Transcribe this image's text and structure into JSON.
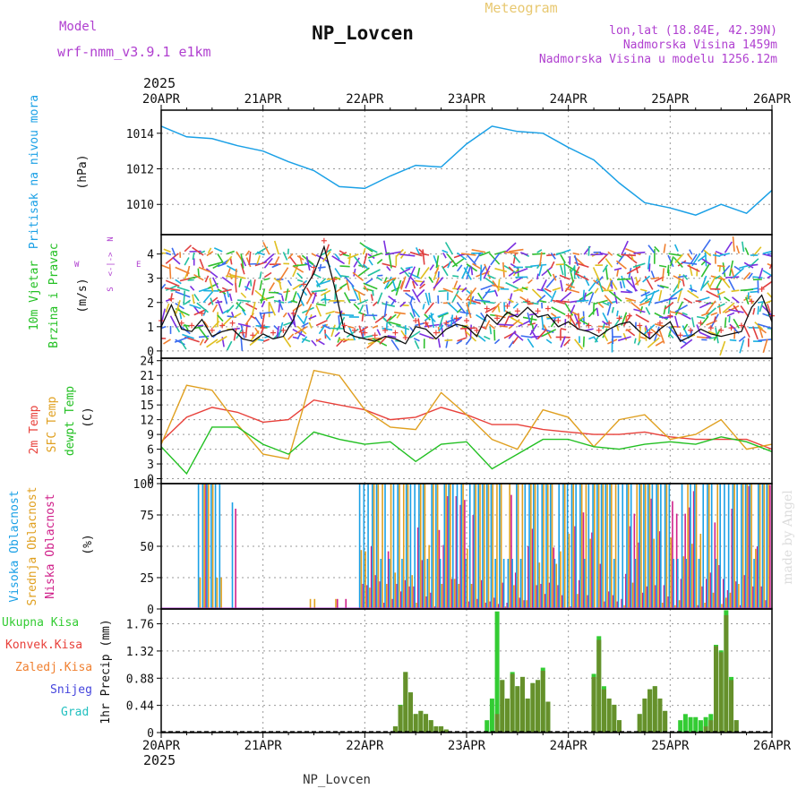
{
  "header": {
    "model_label": "Model",
    "model_name": "wrf-nmm_v3.9.1 e1km",
    "station": "NP_Lovcen",
    "chart_kind": "Meteogram",
    "coords": "lon,lat (18.84E, 42.39N)",
    "elevation": "Nadmorska Visina 1459m",
    "model_elevation": "Nadmorska Visina u modelu 1256.12m",
    "credit": "made by Angel",
    "footer_station": "NP_Lovcen"
  },
  "colors": {
    "pressure": "#1aa0e6",
    "temp2m": "#e8403a",
    "sfc": "#e0a020",
    "dewpt": "#22c022",
    "high_cloud": "#1aa0e6",
    "mid_cloud": "#e0a020",
    "low_cloud": "#d0208a",
    "total_precip": "#33cc33",
    "conv_precip": "#e8403a",
    "frz_precip": "#f08030",
    "snow": "#4444dd",
    "grad": "#22c0c0",
    "wind_axis_label": "#b040d0"
  },
  "time_axis": {
    "year": "2025",
    "labels": [
      "20APR",
      "21APR",
      "22APR",
      "23APR",
      "24APR",
      "25APR",
      "26APR"
    ]
  },
  "chart_data": [
    {
      "type": "line",
      "panel": "pressure",
      "ylabel_main": "Pritisak na nivou mora",
      "ylabel_unit": "(hPa)",
      "yticks": [
        "1010",
        "1012",
        "1014"
      ],
      "ylim": [
        1008.3,
        1015.3
      ],
      "x": [
        0,
        0.25,
        0.5,
        0.75,
        1,
        1.25,
        1.5,
        1.75,
        2,
        2.25,
        2.5,
        2.75,
        3,
        3.25,
        3.5,
        3.75,
        4,
        4.25,
        4.5,
        4.75,
        5,
        5.25,
        5.5,
        5.75,
        6
      ],
      "values": [
        1014.4,
        1013.8,
        1013.7,
        1013.3,
        1013.0,
        1012.4,
        1011.9,
        1011.0,
        1010.9,
        1011.6,
        1012.2,
        1012.1,
        1013.4,
        1014.4,
        1014.1,
        1014.0,
        1013.2,
        1012.5,
        1011.2,
        1010.1,
        1009.8,
        1009.4,
        1010.0,
        1009.5,
        1010.8
      ]
    },
    {
      "type": "line",
      "panel": "wind",
      "ylabel_main": "10m Vjetar",
      "ylabel_sub": "Brzina i Pravac",
      "ylabel_unit": "(m/s)",
      "compass": {
        "n": "N",
        "s": "S",
        "w": "W",
        "e": "E"
      },
      "yticks": [
        "0",
        "1",
        "2",
        "3",
        "4"
      ],
      "ylim": [
        -0.3,
        4.8
      ],
      "x": [
        0,
        0.1,
        0.2,
        0.3,
        0.4,
        0.5,
        0.6,
        0.7,
        0.8,
        0.9,
        1.0,
        1.1,
        1.2,
        1.3,
        1.4,
        1.5,
        1.6,
        1.7,
        1.8,
        1.9,
        2.0,
        2.1,
        2.2,
        2.3,
        2.4,
        2.5,
        2.6,
        2.7,
        2.8,
        2.9,
        3.0,
        3.1,
        3.2,
        3.3,
        3.4,
        3.5,
        3.6,
        3.7,
        3.8,
        3.9,
        4.0,
        4.1,
        4.2,
        4.3,
        4.4,
        4.5,
        4.6,
        4.7,
        4.8,
        4.9,
        5.0,
        5.1,
        5.2,
        5.3,
        5.4,
        5.5,
        5.6,
        5.7,
        5.8,
        5.9,
        6.0
      ],
      "series": [
        {
          "values": [
            1.0,
            1.9,
            0.9,
            0.8,
            1.3,
            0.6,
            0.8,
            0.9,
            0.5,
            0.4,
            0.7,
            0.5,
            0.6,
            1.3,
            2.5,
            3.2,
            4.3,
            2.7,
            0.8,
            0.6,
            0.5,
            0.4,
            0.6,
            0.5,
            0.3,
            1.0,
            0.9,
            0.5,
            0.9,
            1.1,
            1.0,
            0.6,
            1.5,
            1.1,
            1.6,
            1.4,
            1.8,
            1.4,
            1.5,
            1.0,
            1.2,
            0.9,
            0.8,
            0.6,
            0.9,
            1.1,
            1.2,
            0.8,
            0.5,
            0.9,
            1.2,
            0.4,
            0.6,
            0.9,
            0.7,
            0.6,
            0.7,
            0.8,
            1.8,
            2.3,
            1.2
          ]
        }
      ]
    },
    {
      "type": "line",
      "panel": "temperature",
      "ylabel_parts": [
        "2m Temp",
        "SFC Temp",
        "dewpt Temp"
      ],
      "ylabel_unit": "(C)",
      "yticks": [
        "0",
        "3",
        "6",
        "9",
        "12",
        "15",
        "18",
        "21",
        "24"
      ],
      "ylim": [
        -1,
        24.5
      ],
      "x": [
        0,
        0.25,
        0.5,
        0.75,
        1,
        1.25,
        1.5,
        1.75,
        2,
        2.25,
        2.5,
        2.75,
        3,
        3.25,
        3.5,
        3.75,
        4,
        4.25,
        4.5,
        4.75,
        5,
        5.25,
        5.5,
        5.75,
        6
      ],
      "series": [
        {
          "values": [
            7.5,
            12.5,
            14.5,
            13.5,
            11.5,
            12,
            16,
            15,
            14,
            12,
            12.5,
            14.5,
            13,
            11,
            11,
            10,
            9.5,
            9,
            9,
            9.5,
            8.5,
            8,
            8,
            8,
            6
          ]
        },
        {
          "values": [
            7.0,
            19,
            18,
            11,
            5,
            4,
            22,
            21,
            14,
            10.5,
            10,
            17.5,
            13,
            8,
            6,
            14,
            12.5,
            6.5,
            12,
            13,
            8,
            9,
            12,
            6,
            7
          ]
        },
        {
          "values": [
            6.5,
            1,
            10.5,
            10.5,
            7,
            5,
            9.5,
            8,
            7,
            7.5,
            3.5,
            7,
            7.5,
            2,
            5,
            8,
            8,
            6.5,
            6,
            7,
            7.5,
            7,
            8.5,
            7.5,
            5.5
          ]
        }
      ]
    },
    {
      "type": "bar",
      "panel": "clouds",
      "ylabel_parts": [
        "Visoka Oblacnost",
        "Srednja Oblacnost",
        "Niska Oblacnost"
      ],
      "ylabel_unit": "(%)",
      "yticks": [
        "0",
        "25",
        "50",
        "75",
        "100"
      ],
      "ylim": [
        0,
        100
      ],
      "note": "high cloud ~100% on 20APR 09h-14h and from 22APR onward; mid/low cloud variable 0-100% from 22APR"
    },
    {
      "type": "bar",
      "panel": "precipitation",
      "ylabel_parts": [
        "Ukupna Kisa",
        "Konvek.Kisa",
        "Zaledj.Kisa",
        "Snijeg",
        "Grad"
      ],
      "ylabel_unit": "1hr Precip (mm)",
      "yticks": [
        "0",
        "0.44",
        "0.88",
        "1.32",
        "1.76"
      ],
      "ylim": [
        0,
        2.0
      ],
      "x": [
        2.3,
        2.35,
        2.4,
        2.45,
        2.5,
        2.55,
        2.6,
        2.65,
        2.7,
        2.75,
        2.8,
        3.2,
        3.25,
        3.3,
        3.35,
        3.4,
        3.45,
        3.5,
        3.55,
        3.6,
        3.65,
        3.7,
        3.75,
        3.8,
        4.25,
        4.3,
        4.35,
        4.4,
        4.45,
        4.5,
        4.7,
        4.75,
        4.8,
        4.85,
        4.9,
        4.95,
        5.1,
        5.15,
        5.2,
        5.25,
        5.3,
        5.35,
        5.4,
        5.45,
        5.5,
        5.55,
        5.6,
        5.65
      ],
      "series": [
        {
          "name": "Ukupna Kisa",
          "values": [
            0.1,
            0.45,
            0.98,
            0.65,
            0.3,
            0.35,
            0.3,
            0.2,
            0.1,
            0.1,
            0.05,
            0.2,
            0.55,
            1.96,
            0.85,
            0.55,
            0.98,
            0.75,
            0.9,
            0.55,
            0.8,
            0.85,
            1.05,
            0.5,
            0.95,
            1.56,
            0.75,
            0.55,
            0.45,
            0.2,
            0.3,
            0.55,
            0.7,
            0.75,
            0.55,
            0.35,
            0.2,
            0.3,
            0.25,
            0.25,
            0.2,
            0.25,
            0.3,
            1.42,
            1.33,
            1.98,
            0.9,
            0.2
          ]
        },
        {
          "name": "Konvek.Kisa",
          "values": [
            0.1,
            0.44,
            0.98,
            0.65,
            0.3,
            0.35,
            0.3,
            0.2,
            0.1,
            0.1,
            0.05,
            0.0,
            0.0,
            0.3,
            0.85,
            0.55,
            0.95,
            0.75,
            0.9,
            0.55,
            0.8,
            0.85,
            1.0,
            0.5,
            0.9,
            1.5,
            0.7,
            0.55,
            0.45,
            0.2,
            0.3,
            0.55,
            0.7,
            0.75,
            0.55,
            0.35,
            0.0,
            0.0,
            0.0,
            0.0,
            0.0,
            0.1,
            0.2,
            1.4,
            1.3,
            1.9,
            0.85,
            0.2
          ]
        }
      ]
    }
  ]
}
